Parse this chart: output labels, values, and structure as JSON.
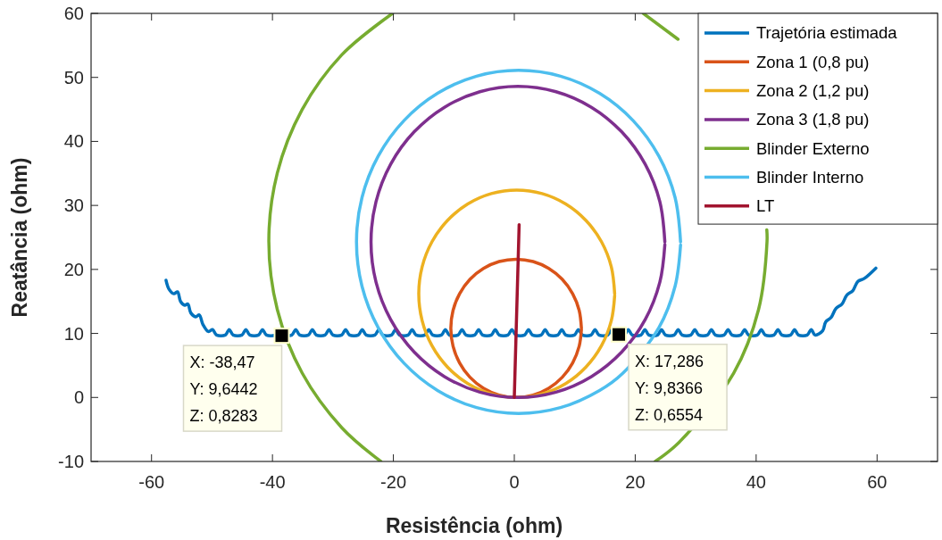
{
  "chart_data": {
    "type": "line",
    "xlabel": "Resistência (ohm)",
    "ylabel": "Reatância (ohm)",
    "xlim": [
      -70,
      70
    ],
    "ylim": [
      -10,
      60
    ],
    "xticks": [
      -60,
      -40,
      -20,
      0,
      20,
      40,
      60
    ],
    "yticks": [
      -10,
      0,
      10,
      20,
      30,
      40,
      50,
      60
    ],
    "legend": "top right",
    "series": [
      {
        "name": "Trajetória estimada",
        "color": "#0072bd",
        "x": [
          -57.6,
          -57.1,
          -56.3,
          -55.7,
          -55.2,
          -54.5,
          -54.0,
          -53.5,
          -52.7,
          -52.1,
          -51.5,
          -50.6,
          -49.9,
          -49.25,
          -47.8,
          -47.15,
          -46.5,
          -45.05,
          -44.4,
          -43.75,
          -42.3,
          -41.65,
          -41,
          -39.55,
          -38.9,
          -38.25,
          -36.8,
          -36.15,
          -35.5,
          -34.05,
          -33.4,
          -32.75,
          -31.3,
          -30.65,
          -30,
          -28.55,
          -27.9,
          -27.25,
          -25.8,
          -25.15,
          -24.5,
          -23.05,
          -22.4,
          -21.75,
          -20.3,
          -19.65,
          -19,
          -17.55,
          -16.9,
          -16.25,
          -14.8,
          -14.15,
          -13.5,
          -12.05,
          -11.4,
          -10.75,
          -9.3,
          -8.65,
          -8,
          -6.55,
          -5.9,
          -5.25,
          -3.8,
          -3.15,
          -2.5,
          -1.05,
          -0.4,
          0.25,
          1.7,
          2.35,
          3,
          4.45,
          5.1,
          5.75,
          7.2,
          7.85,
          8.5,
          9.95,
          10.6,
          11.25,
          12.7,
          13.35,
          14,
          15.45,
          16.1,
          16.75,
          18.2,
          18.85,
          19.5,
          20.95,
          21.6,
          22.25,
          23.7,
          24.35,
          25,
          26.45,
          27.1,
          27.75,
          29.2,
          29.85,
          30.5,
          31.95,
          32.6,
          33.25,
          34.7,
          35.35,
          36,
          37.45,
          38.1,
          38.75,
          40.2,
          40.85,
          41.5,
          42.95,
          43.6,
          44.25,
          45.7,
          46.35,
          47,
          48.45,
          49.1,
          49.75,
          51.0,
          51.5,
          52.4,
          53.2,
          54.2,
          55.0,
          56.0,
          56.8,
          57.9,
          59.8
        ],
        "values": [
          18.3,
          16.9,
          16.2,
          16.5,
          15.0,
          14.4,
          14.6,
          13.2,
          12.6,
          12.9,
          11.4,
          10.3,
          10.6,
          9.75,
          9.75,
          10.6,
          9.75,
          9.75,
          10.6,
          9.75,
          9.75,
          10.6,
          9.75,
          9.75,
          10.6,
          9.75,
          9.75,
          10.6,
          9.75,
          9.75,
          10.6,
          9.75,
          9.75,
          10.6,
          9.75,
          9.75,
          10.6,
          9.75,
          9.75,
          10.6,
          9.75,
          9.75,
          10.6,
          9.75,
          9.75,
          10.6,
          9.75,
          9.75,
          10.6,
          9.75,
          9.75,
          10.6,
          9.75,
          9.75,
          10.6,
          9.75,
          9.75,
          10.6,
          9.75,
          9.75,
          10.6,
          9.75,
          9.75,
          10.6,
          9.75,
          9.75,
          10.6,
          9.75,
          9.75,
          10.6,
          9.75,
          9.75,
          10.6,
          9.75,
          9.75,
          10.6,
          9.75,
          9.75,
          10.6,
          9.75,
          9.75,
          10.6,
          9.75,
          9.75,
          10.6,
          9.75,
          9.75,
          10.6,
          9.75,
          9.75,
          10.6,
          9.75,
          9.75,
          10.6,
          9.75,
          9.75,
          10.6,
          9.75,
          9.75,
          10.6,
          9.75,
          9.75,
          10.6,
          9.75,
          9.75,
          10.6,
          9.75,
          9.75,
          10.6,
          9.75,
          9.75,
          10.6,
          9.75,
          9.75,
          10.6,
          9.75,
          9.75,
          10.6,
          9.75,
          9.75,
          10.6,
          9.75,
          10.4,
          11.8,
          12.5,
          13.9,
          14.6,
          16.0,
          16.7,
          18.1,
          18.6,
          20.2
        ]
      },
      {
        "name": "Zona 1  (0,8 pu)",
        "color": "#d95319",
        "x": [
          11.1,
          10.73,
          9.65,
          7.94,
          5.7,
          3.1,
          0.3,
          -2.5,
          -5.1,
          -7.34,
          -9.05,
          -10.13,
          -10.5,
          -10.13,
          -9.05,
          -7.34,
          -5.1,
          -2.5,
          0.3,
          3.1,
          5.7,
          7.94,
          9.65,
          10.73,
          11.1
        ],
        "values": [
          10.8,
          13.6,
          16.2,
          18.44,
          20.15,
          21.23,
          21.6,
          21.23,
          20.15,
          18.44,
          16.2,
          13.6,
          10.8,
          8.0,
          5.4,
          3.16,
          1.45,
          0.37,
          0,
          0.37,
          1.45,
          3.16,
          5.4,
          8.0,
          10.61
        ]
      },
      {
        "name": "Zona 2  (1,2 pu)",
        "color": "#edb120",
        "x": [
          16.6,
          16.05,
          14.43,
          11.85,
          8.5,
          4.59,
          0.4,
          -3.79,
          -7.7,
          -11.05,
          -13.63,
          -15.25,
          -15.8,
          -15.25,
          -13.63,
          -11.05,
          -7.7,
          -3.79,
          0.4,
          4.59,
          8.5,
          11.85,
          14.43,
          16.05,
          16.6
        ],
        "values": [
          16.2,
          20.39,
          24.3,
          27.65,
          30.23,
          31.85,
          32.4,
          31.85,
          30.23,
          27.65,
          24.3,
          20.39,
          16.2,
          12.01,
          8.1,
          4.75,
          2.17,
          0.55,
          0,
          0.55,
          2.17,
          4.75,
          8.1,
          12.01,
          15.92
        ]
      },
      {
        "name": "Zona 3  (1,8 pu)",
        "color": "#7e2f8e",
        "x": [
          24.9,
          24.07,
          21.64,
          17.78,
          12.75,
          6.89,
          0.6,
          -5.69,
          -11.55,
          -16.58,
          -20.44,
          -22.87,
          -23.7,
          -22.87,
          -20.44,
          -16.58,
          -11.55,
          -5.69,
          0.6,
          6.89,
          12.75,
          17.78,
          21.64,
          24.07,
          24.9
        ],
        "values": [
          24.3,
          30.59,
          36.45,
          41.48,
          45.34,
          47.77,
          48.6,
          47.77,
          45.34,
          41.48,
          36.45,
          30.59,
          24.3,
          18.01,
          12.15,
          7.12,
          3.26,
          0.83,
          0,
          0.83,
          3.26,
          7.12,
          12.15,
          18.01,
          23.88
        ]
      },
      {
        "name": "Blinder Externo",
        "color": "#77ac30",
        "x": [
          23.3,
          27.27,
          36.28,
          40.4,
          41.8,
          41.76,
          40.4,
          36.28,
          27.08,
          21.34,
          0.6,
          -20.14,
          -28.53,
          -35.08,
          -39.2,
          -40.6,
          -39.2,
          -35.08,
          -28.53,
          -22.07
        ],
        "values": [
          -10,
          -7,
          3.8,
          13.74,
          24.4,
          26.2,
          null,
          null,
          55.96,
          60,
          null,
          60,
          53.53,
          45.0,
          35.06,
          24.4,
          13.74,
          3.8,
          -4.73,
          -10
        ]
      },
      {
        "name": "Blinder Interno",
        "color": "#4dbeee",
        "x": [
          27.5,
          26.59,
          23.91,
          19.65,
          14.1,
          7.64,
          0.7,
          -6.24,
          -12.7,
          -18.25,
          -22.51,
          -25.19,
          -26.1,
          -25.19,
          -22.51,
          -18.25,
          -12.7,
          -6.24,
          0.7,
          7.64,
          14.1,
          17.93,
          23.91,
          26.59,
          27.5
        ],
        "values": [
          24.3,
          31.24,
          37.7,
          43.25,
          47.51,
          50.19,
          51.1,
          50.19,
          47.51,
          43.25,
          37.7,
          31.24,
          24.3,
          17.36,
          10.9,
          5.35,
          1.09,
          -1.59,
          -2.5,
          -1.59,
          1.09,
          3.77,
          10.9,
          17.36,
          23.83
        ]
      },
      {
        "name": "LT",
        "color": "#a2142f",
        "x": [
          0,
          0.8
        ],
        "values": [
          0,
          27
        ]
      }
    ],
    "annotations": [
      {
        "text": "X: -38,47\nY: 9,6442\nZ: 0,8283",
        "x": -38.47,
        "y": 9.6442
      },
      {
        "text": "X: 17,286\nY: 9,8366\nZ: 0,6554",
        "x": 17.286,
        "y": 9.8366
      }
    ]
  }
}
